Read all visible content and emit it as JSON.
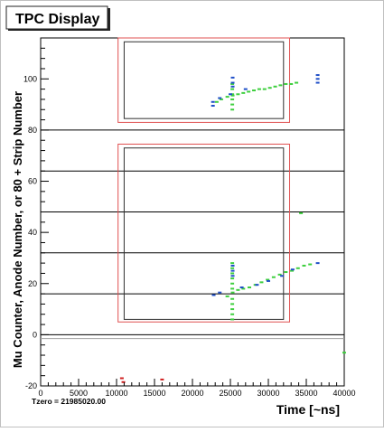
{
  "chart_data": {
    "type": "scatter",
    "title": "TPC Display",
    "xlabel": "Time [~ns]",
    "ylabel": "Mu Counter, Anode Number, or 80 + Strip Number",
    "footnote": "Tzero = 21985020.00",
    "xlim": [
      0,
      40000
    ],
    "ylim": [
      -20,
      116
    ],
    "x_ticks": [
      0,
      5000,
      10000,
      15000,
      20000,
      25000,
      30000,
      35000,
      40000
    ],
    "y_ticks": [
      -20,
      0,
      20,
      40,
      60,
      80,
      100
    ],
    "grid": false,
    "horizontal_lines": [
      0,
      16,
      32,
      48,
      64,
      80
    ],
    "boxes": [
      {
        "name": "outer-box-upper",
        "x": [
          10200,
          32800
        ],
        "y": [
          83,
          116
        ],
        "color": "#e05050"
      },
      {
        "name": "inner-box-upper",
        "x": [
          11000,
          32000
        ],
        "y": [
          84.5,
          114.5
        ],
        "color": "#303030"
      },
      {
        "name": "outer-box-lower",
        "x": [
          10200,
          32800
        ],
        "y": [
          5,
          74.5
        ],
        "color": "#e05050"
      },
      {
        "name": "inner-box-lower",
        "x": [
          11000,
          32000
        ],
        "y": [
          6,
          73
        ],
        "color": "#303030"
      }
    ],
    "series": [
      {
        "name": "",
        "color": "#3ecf3e",
        "points": [
          [
            23200,
            91
          ],
          [
            23800,
            92
          ],
          [
            24600,
            93
          ],
          [
            25300,
            93.5
          ],
          [
            26000,
            94
          ],
          [
            26700,
            94.5
          ],
          [
            27400,
            95
          ],
          [
            28100,
            95.5
          ],
          [
            28800,
            96
          ],
          [
            29500,
            96
          ],
          [
            30200,
            96.5
          ],
          [
            30900,
            97
          ],
          [
            31600,
            97.5
          ],
          [
            32300,
            98
          ],
          [
            33000,
            98
          ],
          [
            33700,
            98.5
          ],
          [
            25250,
            88
          ],
          [
            25250,
            90
          ],
          [
            25250,
            92
          ],
          [
            25250,
            94
          ],
          [
            25250,
            96
          ],
          [
            25250,
            98
          ],
          [
            24600,
            15
          ],
          [
            25300,
            16.5
          ],
          [
            26000,
            17.5
          ],
          [
            26700,
            18
          ],
          [
            27500,
            18.5
          ],
          [
            28300,
            19.5
          ],
          [
            29100,
            20.5
          ],
          [
            29900,
            21.5
          ],
          [
            30700,
            22.5
          ],
          [
            31500,
            23.5
          ],
          [
            32300,
            24.5
          ],
          [
            33100,
            25
          ],
          [
            33900,
            26
          ],
          [
            34700,
            27
          ],
          [
            35500,
            27.5
          ],
          [
            25250,
            6
          ],
          [
            25250,
            8
          ],
          [
            25250,
            10
          ],
          [
            25250,
            12
          ],
          [
            25250,
            14
          ],
          [
            25250,
            18
          ],
          [
            25250,
            20
          ],
          [
            25250,
            22
          ],
          [
            25250,
            24
          ],
          [
            25250,
            26
          ],
          [
            25250,
            28
          ],
          [
            34300,
            47.5
          ],
          [
            40000,
            -7
          ]
        ]
      },
      {
        "name": "",
        "color": "#1f4fc8",
        "points": [
          [
            22700,
            91
          ],
          [
            22700,
            89.5
          ],
          [
            23600,
            92.5
          ],
          [
            25300,
            100.5
          ],
          [
            25300,
            98.5
          ],
          [
            25300,
            97
          ],
          [
            36500,
            101.5
          ],
          [
            36500,
            100
          ],
          [
            36500,
            98.5
          ],
          [
            25000,
            94
          ],
          [
            27000,
            96
          ],
          [
            22800,
            15.5
          ],
          [
            23600,
            16.5
          ],
          [
            25300,
            27
          ],
          [
            25300,
            25
          ],
          [
            25300,
            23
          ],
          [
            26500,
            18.5
          ],
          [
            28500,
            19.5
          ],
          [
            30000,
            21
          ],
          [
            31800,
            23
          ],
          [
            33200,
            25.5
          ],
          [
            36500,
            28
          ]
        ]
      },
      {
        "name": "",
        "color": "#d02020",
        "points": [
          [
            10700,
            -17
          ],
          [
            10900,
            -18.5
          ],
          [
            16000,
            -17.5
          ]
        ]
      }
    ]
  }
}
